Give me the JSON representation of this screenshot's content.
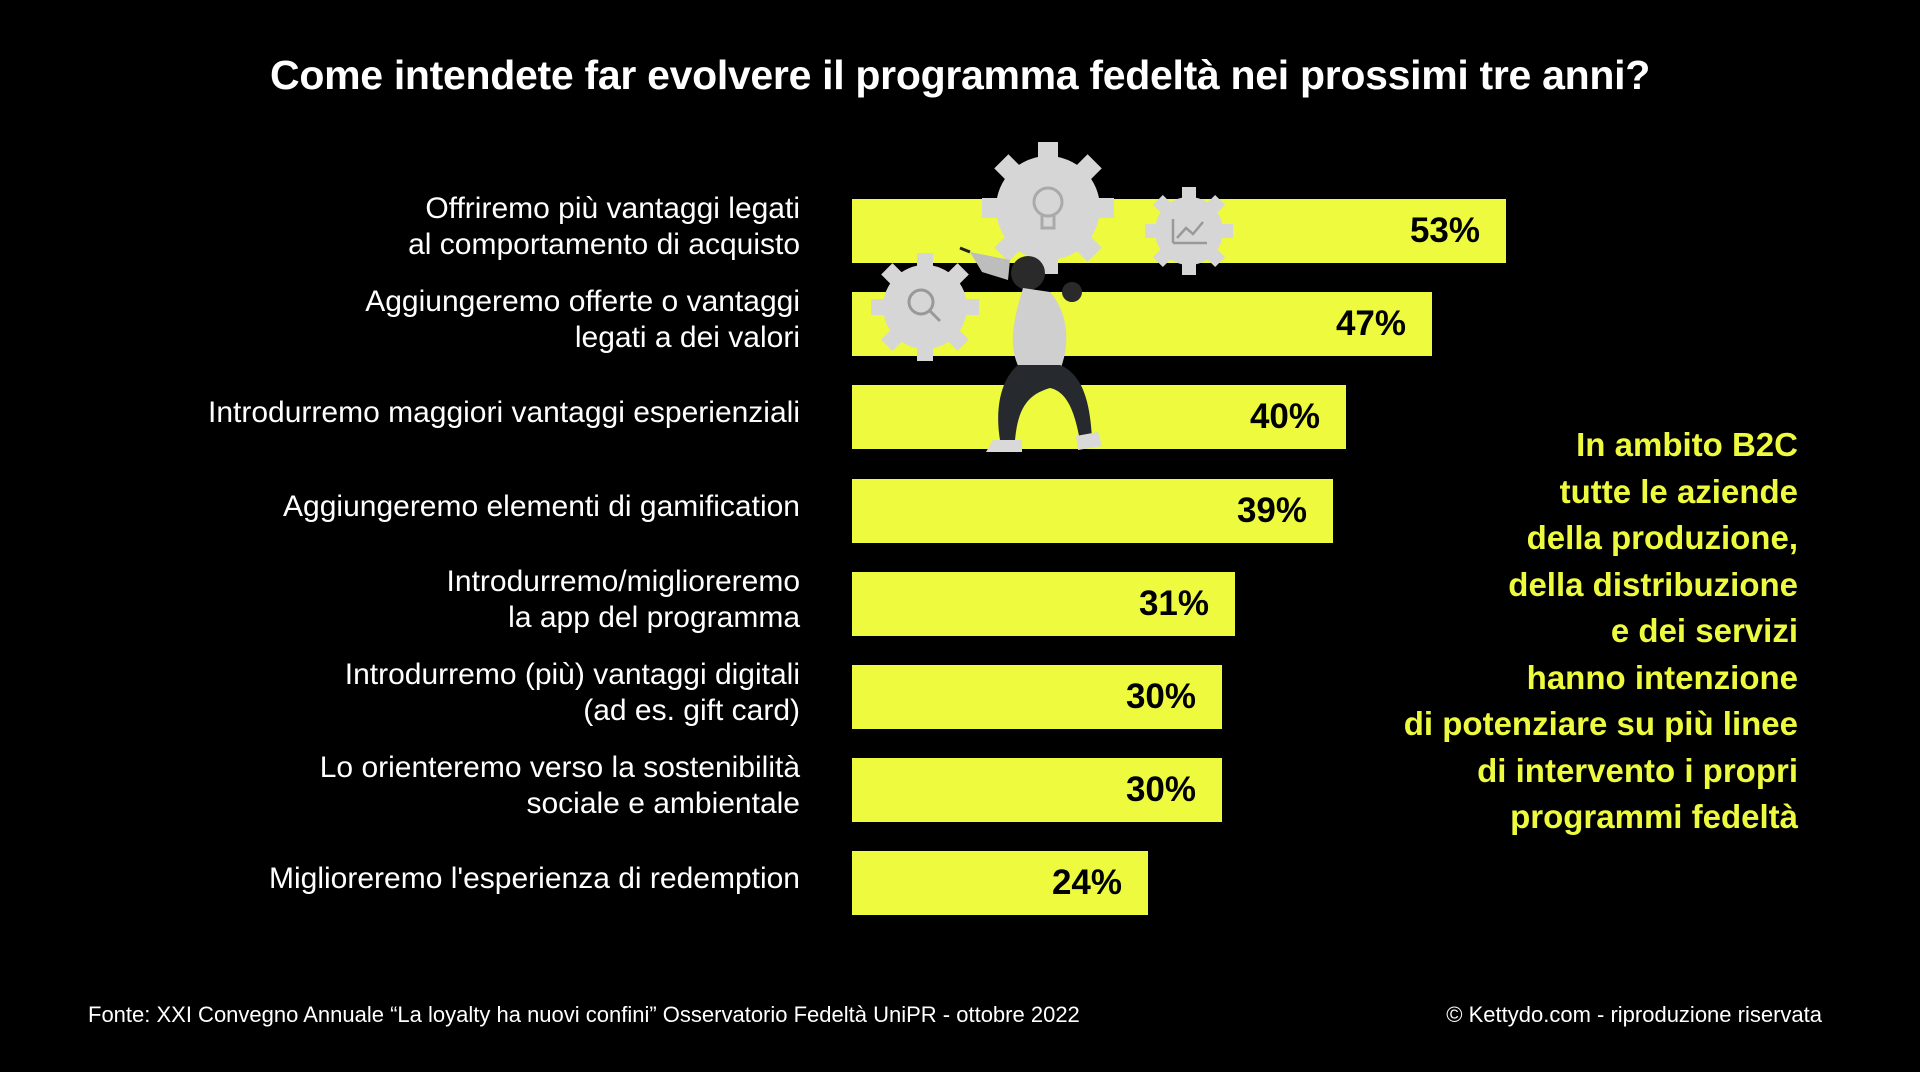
{
  "colors": {
    "background": "#000000",
    "bar": "#EDFA3E",
    "text": "#FFFFFF",
    "callout": "#EDFA3E"
  },
  "illustration": {
    "icons": [
      "gear-icon",
      "lightbulb-icon",
      "chart-icon",
      "magnifier-icon"
    ]
  },
  "chart_data": {
    "type": "bar",
    "orientation": "horizontal",
    "title": "Come intendete far evolvere il programma fedeltà nei prossimi tre anni?",
    "categories": [
      "Offriremo più vantaggi legati\nal comportamento di acquisto",
      "Aggiungeremo offerte o vantaggi\nlegati a dei valori",
      "Introdurremo maggiori vantaggi esperienziali",
      "Aggiungeremo elementi di gamification",
      "Introdurremo/miglioreremo\nla app del programma",
      "Introdurremo (più) vantaggi digitali\n(ad es. gift card)",
      "Lo orienteremo verso la sostenibilità\nsociale e ambientale",
      "Miglioreremo l'esperienza di redemption"
    ],
    "values": [
      53,
      47,
      40,
      39,
      31,
      30,
      30,
      24
    ],
    "value_labels": [
      "53%",
      "47%",
      "40%",
      "39%",
      "31%",
      "30%",
      "30%",
      "24%"
    ],
    "unit": "%",
    "grid": false
  },
  "callout": "In ambito B2C\ntutte le aziende\ndella produzione,\ndella distribuzione\ne dei servizi\nhanno intenzione\ndi potenziare su più linee\ndi intervento i propri\nprogrammi fedeltà",
  "footer": {
    "source": "Fonte: XXI Convegno Annuale “La loyalty ha nuovi confini” Osservatorio Fedeltà UniPR - ottobre 2022",
    "copyright": "© Kettydo.com - riproduzione riservata"
  }
}
